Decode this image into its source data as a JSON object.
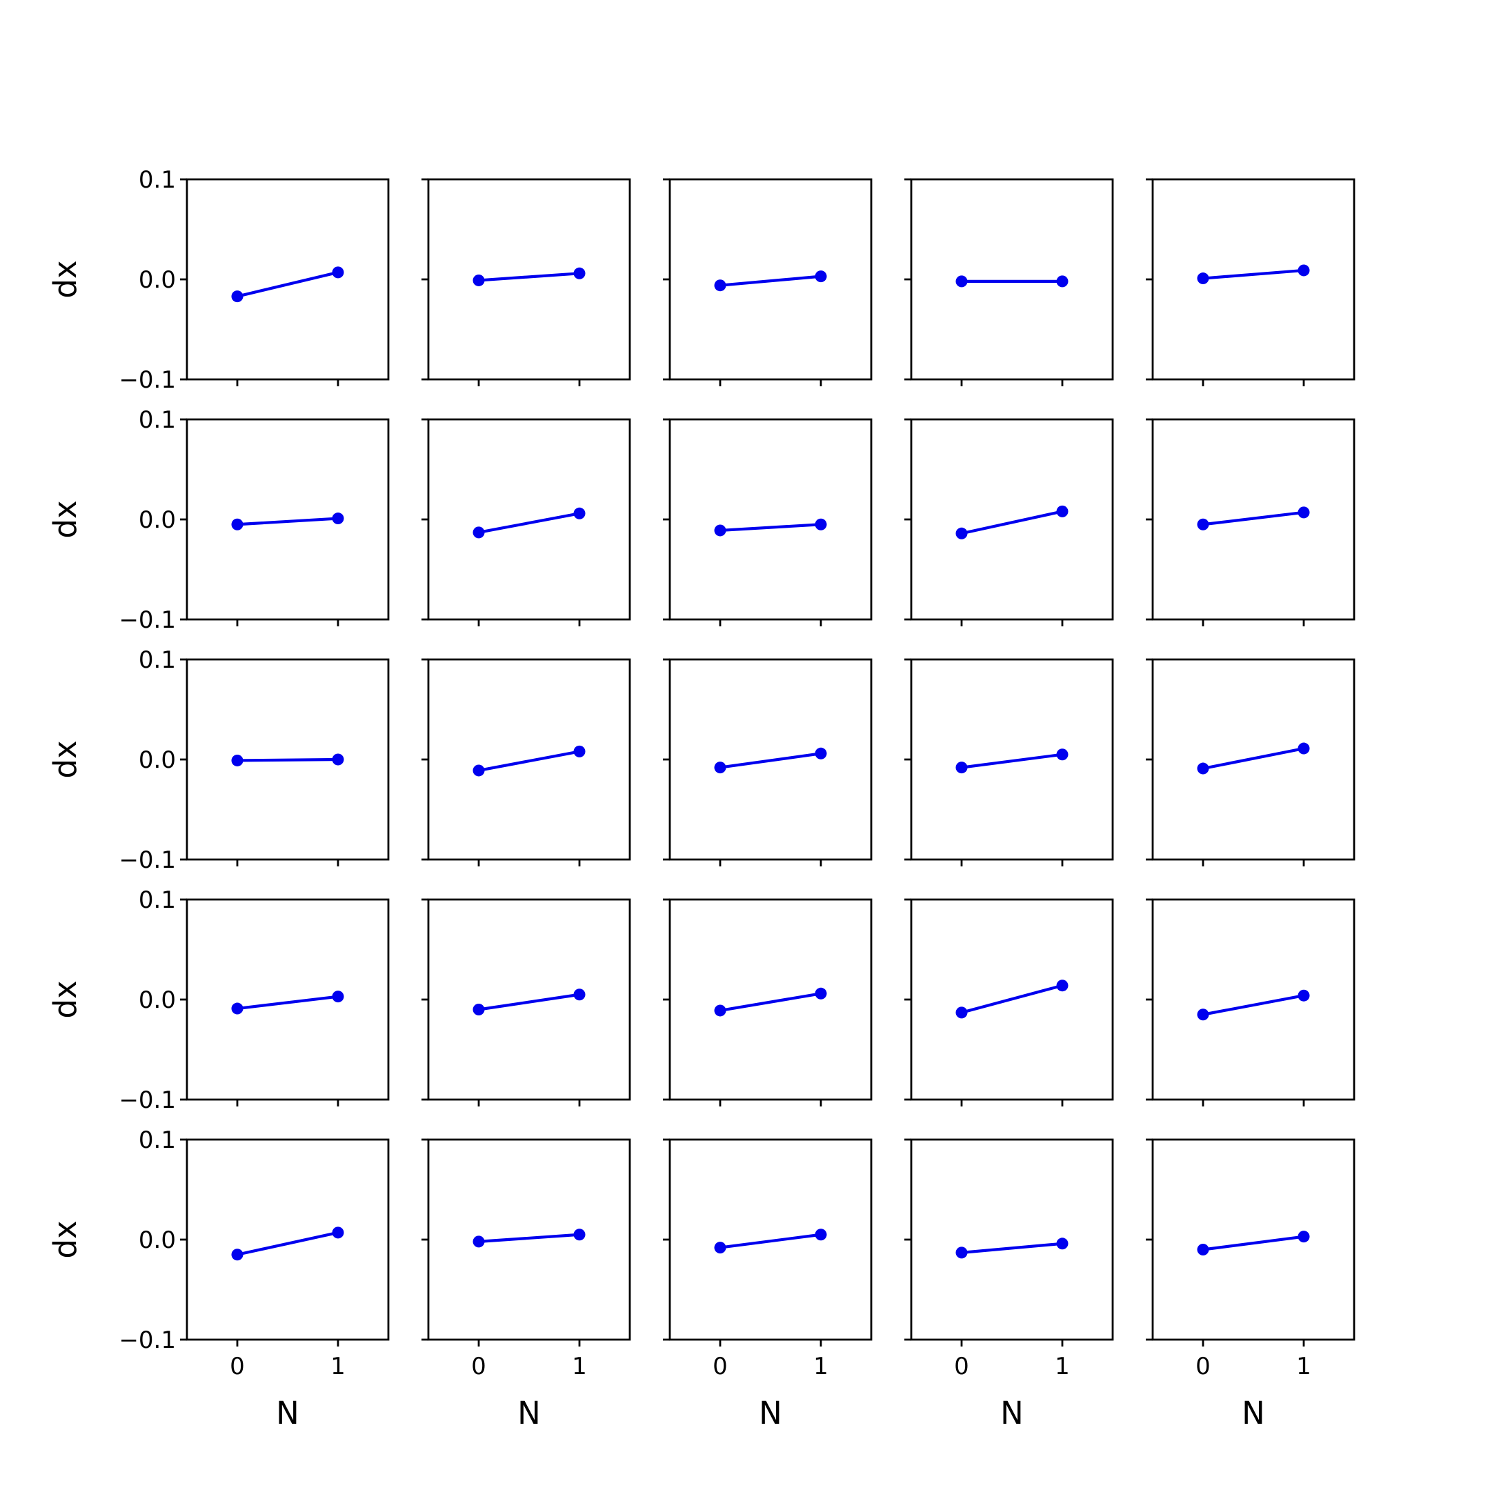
{
  "chart_data": {
    "type": "line",
    "layout": "grid of 5 rows by 5 columns, shared axes",
    "x_ticks": [
      0,
      1
    ],
    "x_tick_labels": [
      "0",
      "1"
    ],
    "y_ticks": [
      -0.1,
      0.0,
      0.1
    ],
    "y_tick_labels": [
      "−0.1",
      "0.0",
      "0.1"
    ],
    "xlim": [
      -0.5,
      1.5
    ],
    "ylim": [
      -0.1,
      0.1
    ],
    "xlabel": "N",
    "ylabel": "dx",
    "grid": false,
    "legend": false,
    "series_color": "#0000ee",
    "marker": "circle",
    "panels": [
      [
        [
          -0.017,
          0.007
        ],
        [
          -0.001,
          0.006
        ],
        [
          -0.006,
          0.003
        ],
        [
          -0.002,
          -0.002
        ],
        [
          0.001,
          0.009
        ]
      ],
      [
        [
          -0.005,
          0.001
        ],
        [
          -0.013,
          0.006
        ],
        [
          -0.011,
          -0.005
        ],
        [
          -0.014,
          0.008
        ],
        [
          -0.005,
          0.007
        ]
      ],
      [
        [
          -0.001,
          0.0
        ],
        [
          -0.011,
          0.008
        ],
        [
          -0.008,
          0.006
        ],
        [
          -0.008,
          0.005
        ],
        [
          -0.009,
          0.011
        ]
      ],
      [
        [
          -0.009,
          0.003
        ],
        [
          -0.01,
          0.005
        ],
        [
          -0.011,
          0.006
        ],
        [
          -0.013,
          0.014
        ],
        [
          -0.015,
          0.004
        ]
      ],
      [
        [
          -0.015,
          0.007
        ],
        [
          -0.002,
          0.005
        ],
        [
          -0.008,
          0.005
        ],
        [
          -0.013,
          -0.004
        ],
        [
          -0.01,
          0.003
        ]
      ]
    ]
  }
}
